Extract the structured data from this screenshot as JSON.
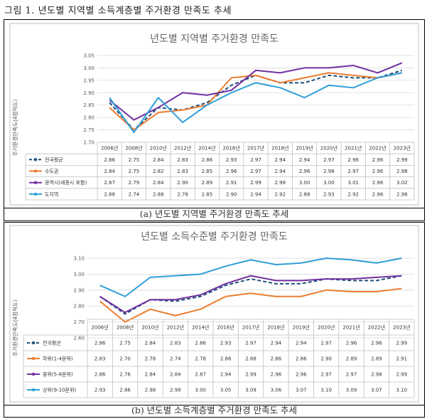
{
  "figure_caption": "그림 1. 년도별 지역별 소득계층별 주거환경 만족도 추세",
  "colors": {
    "전국평균": "#1f4e79",
    "수도권": "#ed7d31",
    "광역시": "#7030a0",
    "도지역": "#2e9fd8",
    "하위": "#ed7d31",
    "중위": "#7030a0",
    "상위": "#2e9fd8"
  },
  "chart_data": [
    {
      "type": "line",
      "title": "년도별 지역별 주거환경 만족도",
      "caption": "(a) 년도별 지역별 주거환경 만족도 추세",
      "ylabel": "주거환경만족도(4점척도)",
      "xlabel": "",
      "ylim": [
        2.7,
        3.05
      ],
      "yticks": [
        "2.70",
        "2.75",
        "2.80",
        "2.85",
        "2.90",
        "2.95",
        "3.00",
        "3.05"
      ],
      "categories": [
        "2006년",
        "2008년",
        "2010년",
        "2012년",
        "2014년",
        "2016년",
        "2017년",
        "2018년",
        "2019년",
        "2020년",
        "2021년",
        "2022년",
        "2023년"
      ],
      "grid": true,
      "legend": "table",
      "series": [
        {
          "name": "전국평균",
          "dashed": true,
          "values": [
            2.86,
            2.75,
            2.84,
            2.83,
            2.86,
            2.93,
            2.97,
            2.94,
            2.94,
            2.97,
            2.96,
            2.96,
            2.99
          ],
          "labels": [
            "2.86",
            "2.75",
            "2.84",
            "2.83",
            "2.86",
            "2.93",
            "2.97",
            "2.94",
            "2.94",
            "2.97",
            "2.96",
            "2.96",
            "2.99"
          ]
        },
        {
          "name": "수도권",
          "dashed": false,
          "values": [
            2.84,
            2.75,
            2.82,
            2.83,
            2.85,
            2.96,
            2.97,
            2.94,
            2.96,
            2.98,
            2.97,
            2.96,
            2.98
          ],
          "labels": [
            "2.84",
            "2.75",
            "2.82",
            "2.83",
            "2.85",
            "2.96",
            "2.97",
            "2.94",
            "2.96",
            "2.98",
            "2.97",
            "2.96",
            "2.98"
          ]
        },
        {
          "name": "광역시(세종시 포함)",
          "dashed": false,
          "values": [
            2.87,
            2.79,
            2.84,
            2.9,
            2.89,
            2.91,
            2.99,
            2.98,
            3.0,
            3.0,
            3.01,
            2.98,
            3.02
          ],
          "labels": [
            "2.87",
            "2.79",
            "2.84",
            "2.90",
            "2.89",
            "2.91",
            "2.99",
            "2.98",
            "3.00",
            "3.00",
            "3.01",
            "2.98",
            "3.02"
          ]
        },
        {
          "name": "도지역",
          "dashed": false,
          "values": [
            2.88,
            2.74,
            2.88,
            2.78,
            2.85,
            2.9,
            2.94,
            2.92,
            2.88,
            2.93,
            2.92,
            2.96,
            2.98
          ],
          "labels": [
            "2.88",
            "2.74",
            "2.88",
            "2.78",
            "2.85",
            "2.90",
            "2.94",
            "2.92",
            "2.88",
            "2.93",
            "2.92",
            "2.96",
            "2.98"
          ]
        }
      ]
    },
    {
      "type": "line",
      "title": "년도별 소득수준별 주거환경 만족도",
      "caption": "(b) 년도별 소득계층별 주거환경 만족도 추세",
      "ylabel": "주거환경만족도(4점척도)",
      "xlabel": "",
      "ylim": [
        2.6,
        3.1
      ],
      "yticks": [
        "2.60",
        "2.70",
        "2.80",
        "2.90",
        "3.00",
        "3.10"
      ],
      "categories": [
        "2006년",
        "2008년",
        "2010년",
        "2012년",
        "2014년",
        "2016년",
        "2017년",
        "2018년",
        "2019년",
        "2020년",
        "2021년",
        "2022년",
        "2023년"
      ],
      "grid": true,
      "legend": "table",
      "series": [
        {
          "name": "전국평균",
          "dashed": true,
          "values": [
            2.86,
            2.75,
            2.84,
            2.83,
            2.86,
            2.93,
            2.97,
            2.94,
            2.94,
            2.97,
            2.96,
            2.96,
            2.99
          ],
          "labels": [
            "2.86",
            "2.75",
            "2.84",
            "2.83",
            "2.86",
            "2.93",
            "2.97",
            "2.94",
            "2.94",
            "2.97",
            "2.96",
            "2.96",
            "2.99"
          ]
        },
        {
          "name": "하위(1-4분위)",
          "dashed": false,
          "values": [
            2.83,
            2.7,
            2.78,
            2.74,
            2.78,
            2.86,
            2.88,
            2.86,
            2.86,
            2.9,
            2.89,
            2.89,
            2.91
          ],
          "labels": [
            "2.83",
            "2.70",
            "2.78",
            "2.74",
            "2.78",
            "2.86",
            "2.88",
            "2.86",
            "2.86",
            "2.90",
            "2.89",
            "2.89",
            "2.91"
          ]
        },
        {
          "name": "중위(5-8분위)",
          "dashed": false,
          "values": [
            2.86,
            2.76,
            2.84,
            2.84,
            2.87,
            2.94,
            2.99,
            2.96,
            2.96,
            2.97,
            2.97,
            2.98,
            2.99
          ],
          "labels": [
            "2.86",
            "2.76",
            "2.84",
            "2.84",
            "2.87",
            "2.94",
            "2.99",
            "2.96",
            "2.96",
            "2.97",
            "2.97",
            "2.98",
            "2.99"
          ]
        },
        {
          "name": "상위(9-10분위)",
          "dashed": false,
          "values": [
            2.93,
            2.86,
            2.98,
            2.99,
            3.0,
            3.05,
            3.09,
            3.06,
            3.07,
            3.1,
            3.09,
            3.07,
            3.1
          ],
          "labels": [
            "2.93",
            "2.86",
            "2.98",
            "2.99",
            "3.00",
            "3.05",
            "3.09",
            "3.06",
            "3.07",
            "3.10",
            "3.09",
            "3.07",
            "3.10"
          ]
        }
      ]
    }
  ]
}
